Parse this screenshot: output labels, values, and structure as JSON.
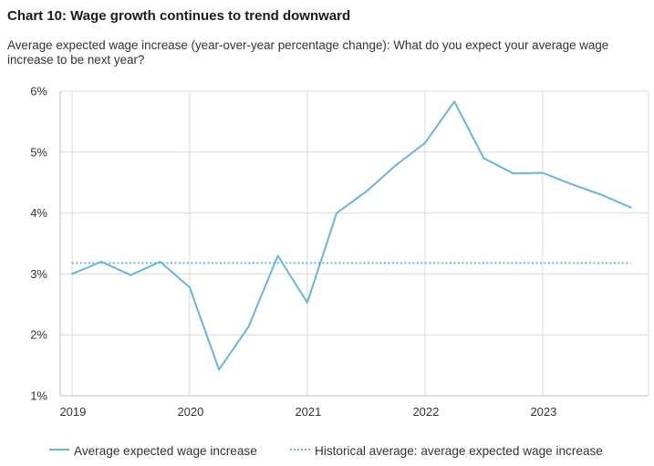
{
  "header": {
    "title": "Chart 10: Wage growth continues to trend downward",
    "subtitle": "Average expected wage increase (year-over-year percentage change): What do you expect your average wage increase to be next year?"
  },
  "colors": {
    "series": "#69b5d8",
    "grid": "#d9d9d9",
    "axis": "#bfbfbf"
  },
  "chart_data": {
    "type": "line",
    "title": "Chart 10: Wage growth continues to trend downward",
    "subtitle": "Average expected wage increase (year-over-year percentage change): What do you expect your average wage increase to be next year?",
    "xlabel": "",
    "ylabel": "",
    "x": [
      2019.0,
      2019.25,
      2019.5,
      2019.75,
      2020.0,
      2020.25,
      2020.5,
      2020.75,
      2021.0,
      2021.25,
      2021.5,
      2021.75,
      2022.0,
      2022.25,
      2022.5,
      2022.75,
      2023.0,
      2023.25,
      2023.5,
      2023.75
    ],
    "xlim": [
      2018.9,
      2023.9
    ],
    "ylim": [
      1,
      6
    ],
    "x_ticks": [
      {
        "value": 2019,
        "label": "2019"
      },
      {
        "value": 2020,
        "label": "2020"
      },
      {
        "value": 2021,
        "label": "2021"
      },
      {
        "value": 2022,
        "label": "2022"
      },
      {
        "value": 2023,
        "label": "2023"
      }
    ],
    "y_ticks": [
      {
        "value": 1,
        "label": "1%"
      },
      {
        "value": 2,
        "label": "2%"
      },
      {
        "value": 3,
        "label": "3%"
      },
      {
        "value": 4,
        "label": "4%"
      },
      {
        "value": 5,
        "label": "5%"
      },
      {
        "value": 6,
        "label": "6%"
      }
    ],
    "grid": true,
    "legend_position": "bottom",
    "series": [
      {
        "name": "Average expected wage increase",
        "style": "solid",
        "values": [
          3.0,
          3.2,
          2.98,
          3.2,
          2.78,
          1.43,
          2.13,
          3.3,
          2.53,
          4.0,
          4.35,
          4.78,
          5.15,
          5.83,
          4.9,
          4.65,
          4.66,
          4.47,
          4.3,
          4.09
        ]
      },
      {
        "name": "Historical average: average expected wage increase",
        "style": "dotted",
        "values": [
          3.18,
          3.18,
          3.18,
          3.18,
          3.18,
          3.18,
          3.18,
          3.18,
          3.18,
          3.18,
          3.18,
          3.18,
          3.18,
          3.18,
          3.18,
          3.18,
          3.18,
          3.18,
          3.18,
          3.18
        ]
      }
    ]
  }
}
